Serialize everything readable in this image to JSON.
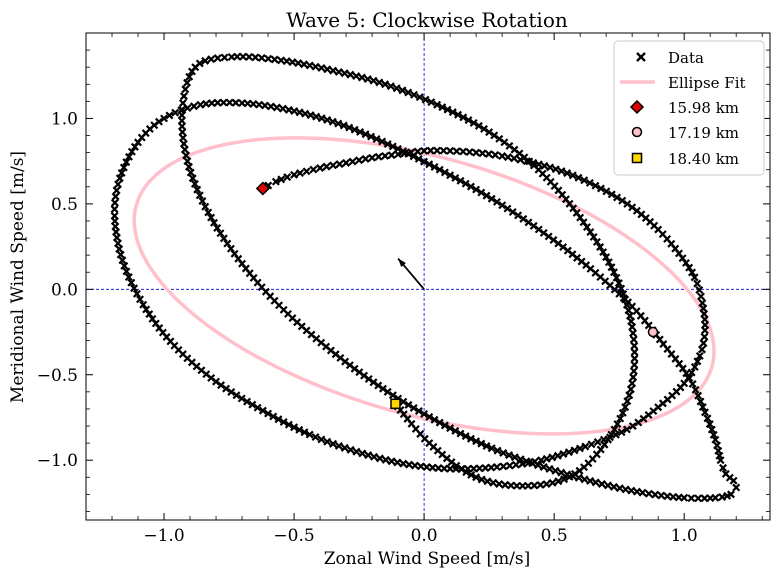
{
  "chart_data": {
    "type": "scatter",
    "title": "Wave 5: Clockwise Rotation",
    "xlabel": "Zonal Wind Speed [m/s]",
    "ylabel": "Meridional Wind Speed [m/s]",
    "xlim": [
      -1.3,
      1.33
    ],
    "ylim": [
      -1.35,
      1.5
    ],
    "xticks": [
      -1.0,
      -0.5,
      0.0,
      0.5,
      1.0
    ],
    "xtick_labels": [
      "−1.0",
      "−0.5",
      "0.0",
      "0.5",
      "1.0"
    ],
    "yticks": [
      -1.0,
      -0.5,
      0.0,
      0.5,
      1.0
    ],
    "ytick_labels": [
      "−1.0",
      "−0.5",
      "0.0",
      "0.5",
      "1.0"
    ],
    "grid": false,
    "reference_lines": {
      "x": 0.0,
      "y": 0.0,
      "color": "#0000cc",
      "style": "dashed"
    },
    "series": [
      {
        "name": "Data",
        "marker": "x",
        "color": "#000000",
        "description": "hodograph spiral from start marker to end marker",
        "x": [
          -0.62,
          -0.57,
          -0.5,
          -0.4,
          -0.3,
          -0.2,
          -0.1,
          0.0,
          0.1,
          0.2,
          0.3,
          0.42,
          0.55,
          0.68,
          0.8,
          0.9,
          0.98,
          1.04,
          1.07,
          1.08,
          1.06,
          1.0,
          0.9,
          0.78,
          0.62,
          0.45,
          0.28,
          0.1,
          -0.08,
          -0.26,
          -0.44,
          -0.62,
          -0.8,
          -0.96,
          -1.08,
          -1.16,
          -1.19,
          -1.17,
          -1.1,
          -1.0,
          -0.86,
          -0.7,
          -0.52,
          -0.33,
          -0.14,
          0.06,
          0.26,
          0.46,
          0.64,
          0.8,
          0.92,
          1.02,
          1.08,
          1.12,
          1.14,
          1.16,
          1.19,
          1.2,
          1.18,
          1.12,
          1.0,
          0.84,
          0.66,
          0.46,
          0.26,
          0.06,
          -0.14,
          -0.34,
          -0.54,
          -0.7,
          -0.83,
          -0.91,
          -0.93,
          -0.88,
          -0.74,
          -0.55,
          -0.35,
          -0.15,
          0.05,
          0.25,
          0.44,
          0.6,
          0.73,
          0.8,
          0.8,
          0.72,
          0.58,
          0.4,
          0.2,
          0.02,
          -0.11
        ],
        "y": [
          0.59,
          0.63,
          0.67,
          0.71,
          0.74,
          0.77,
          0.79,
          0.81,
          0.81,
          0.8,
          0.78,
          0.74,
          0.68,
          0.59,
          0.48,
          0.35,
          0.21,
          0.07,
          -0.08,
          -0.24,
          -0.39,
          -0.55,
          -0.69,
          -0.82,
          -0.92,
          -1.0,
          -1.04,
          -1.05,
          -1.02,
          -0.95,
          -0.85,
          -0.71,
          -0.54,
          -0.33,
          -0.09,
          0.17,
          0.43,
          0.65,
          0.86,
          1.0,
          1.08,
          1.09,
          1.05,
          0.97,
          0.85,
          0.7,
          0.53,
          0.33,
          0.12,
          -0.1,
          -0.32,
          -0.52,
          -0.72,
          -0.88,
          -1.0,
          -1.08,
          -1.12,
          -1.16,
          -1.2,
          -1.22,
          -1.22,
          -1.19,
          -1.13,
          -1.04,
          -0.93,
          -0.78,
          -0.6,
          -0.38,
          -0.12,
          0.15,
          0.45,
          0.75,
          1.05,
          1.3,
          1.36,
          1.34,
          1.28,
          1.2,
          1.08,
          0.92,
          0.7,
          0.42,
          0.1,
          -0.22,
          -0.55,
          -0.85,
          -1.08,
          -1.15,
          -1.1,
          -0.9,
          -0.67
        ]
      },
      {
        "name": "Ellipse Fit",
        "color": "#ffc0cb",
        "center": [
          0.0,
          0.02
        ],
        "semi_major": 1.22,
        "semi_minor": 0.71,
        "angle_deg": -30
      }
    ],
    "markers": [
      {
        "name": "15.98 km",
        "x": -0.62,
        "y": 0.59,
        "shape": "diamond",
        "color": "#dd0000"
      },
      {
        "name": "17.19 km",
        "x": 0.88,
        "y": -0.25,
        "shape": "circle",
        "color": "#ffc0cb"
      },
      {
        "name": "18.40 km",
        "x": -0.11,
        "y": -0.67,
        "shape": "square",
        "color": "#ffd700"
      }
    ],
    "arrow": {
      "from": [
        0.0,
        0.0
      ],
      "to": [
        -0.1,
        0.18
      ],
      "color": "#000000"
    },
    "legend": {
      "placement": "top-right",
      "entries": [
        "Data",
        "Ellipse Fit",
        "15.98 km",
        "17.19 km",
        "18.40 km"
      ]
    }
  }
}
